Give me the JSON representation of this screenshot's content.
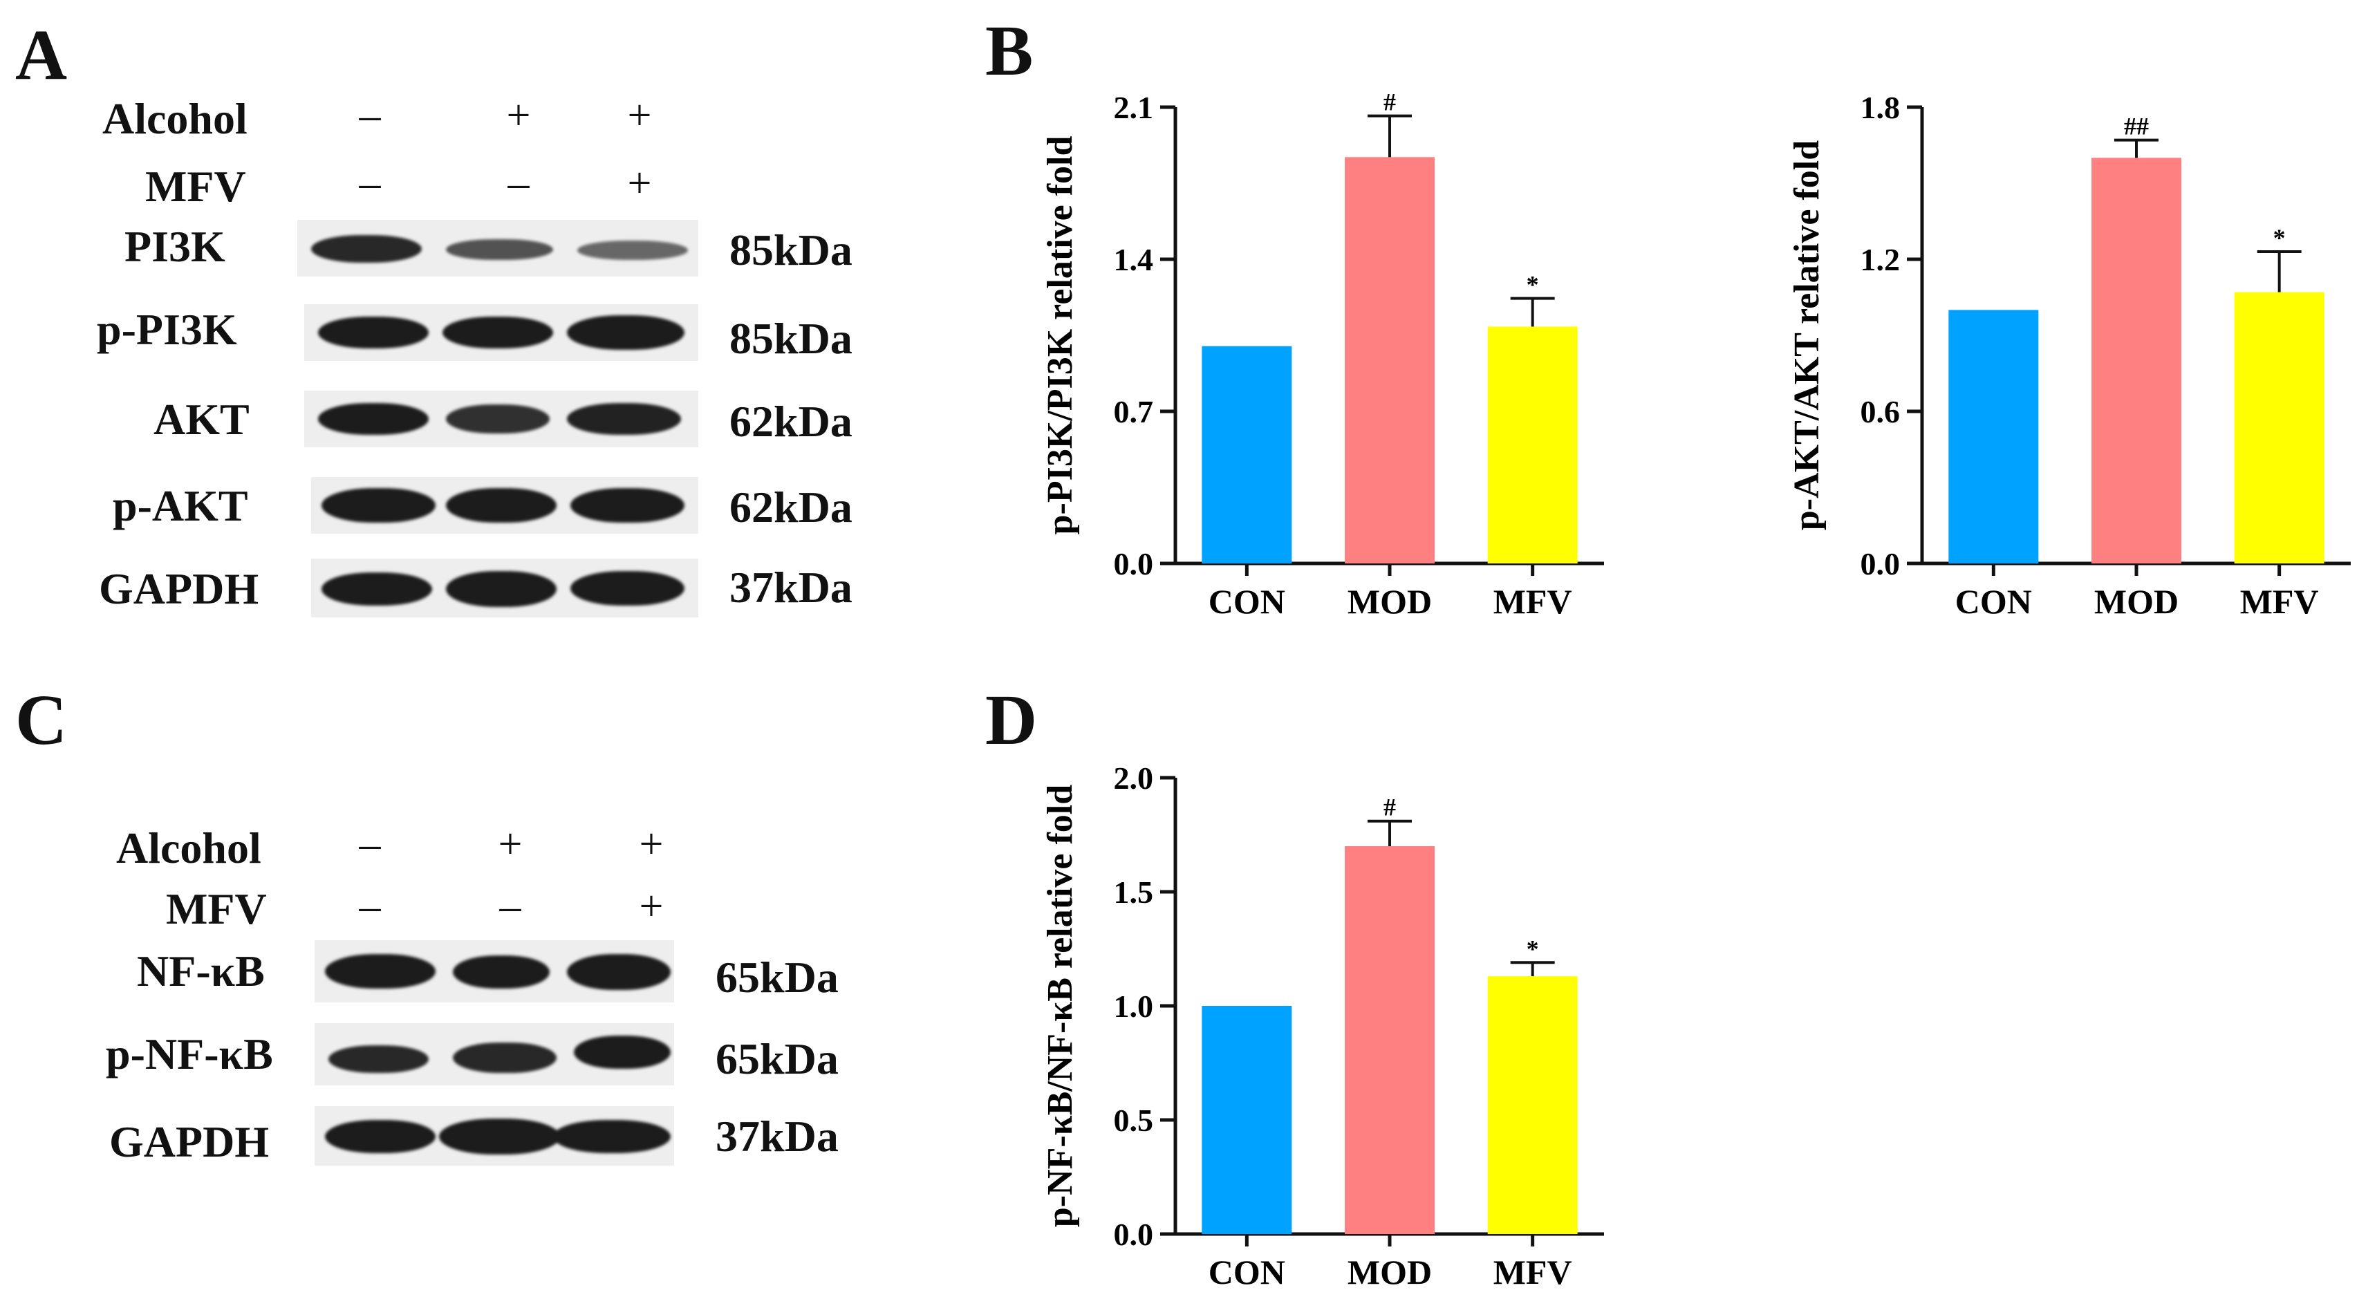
{
  "panels": {
    "A": {
      "letter": "A",
      "treatments": [
        {
          "label": "Alcohol",
          "signs": [
            "–",
            "+",
            "+"
          ]
        },
        {
          "label": "MFV",
          "signs": [
            "–",
            "–",
            "+"
          ]
        }
      ],
      "blots": [
        {
          "label": "PI3K",
          "kda": "85kDa",
          "intensity": [
            0.9,
            0.6,
            0.45
          ]
        },
        {
          "label": "p-PI3K",
          "kda": "85kDa",
          "intensity": [
            1.0,
            1.0,
            1.0
          ]
        },
        {
          "label": "AKT",
          "kda": "62kDa",
          "intensity": [
            1.0,
            0.85,
            0.95
          ]
        },
        {
          "label": "p-AKT",
          "kda": "62kDa",
          "intensity": [
            1.0,
            1.0,
            1.0
          ]
        },
        {
          "label": "GAPDH",
          "kda": "37kDa",
          "intensity": [
            1.0,
            1.0,
            1.0
          ]
        }
      ]
    },
    "B": {
      "letter": "B"
    },
    "C": {
      "letter": "C",
      "treatments": [
        {
          "label": "Alcohol",
          "signs": [
            "–",
            "+",
            "+"
          ]
        },
        {
          "label": "MFV",
          "signs": [
            "–",
            "–",
            "+"
          ]
        }
      ],
      "blots": [
        {
          "label": "NF-κB",
          "kda": "65kDa",
          "intensity": [
            1.0,
            1.0,
            1.0
          ]
        },
        {
          "label": "p-NF-κB",
          "kda": "65kDa",
          "intensity": [
            0.9,
            0.9,
            1.0
          ]
        },
        {
          "label": "GAPDH",
          "kda": "37kDa",
          "intensity": [
            1.0,
            1.0,
            1.0
          ]
        }
      ]
    },
    "D": {
      "letter": "D"
    }
  },
  "colors": {
    "CON": "#00a2ff",
    "MOD": "#ff8080",
    "MFV": "#ffff00"
  },
  "chart_data": [
    {
      "id": "pi3k",
      "type": "bar",
      "categories": [
        "CON",
        "MOD",
        "MFV"
      ],
      "values": [
        1.0,
        1.87,
        1.09
      ],
      "errors": [
        0,
        0.19,
        0.13
      ],
      "annotations": [
        "",
        "#",
        "*"
      ],
      "ylabel": "p-PI3K/PI3K relative fold",
      "ylim": [
        0,
        2.1
      ],
      "yticks": [
        "0.0",
        "0.7",
        "1.4",
        "2.1"
      ]
    },
    {
      "id": "akt",
      "type": "bar",
      "categories": [
        "CON",
        "MOD",
        "MFV"
      ],
      "values": [
        1.0,
        1.6,
        1.07
      ],
      "errors": [
        0,
        0.07,
        0.16
      ],
      "annotations": [
        "",
        "##",
        "*"
      ],
      "ylabel": "p-AKT/AKT relative fold",
      "ylim": [
        0,
        1.8
      ],
      "yticks": [
        "0.0",
        "0.6",
        "1.2",
        "1.8"
      ]
    },
    {
      "id": "nfkb",
      "type": "bar",
      "categories": [
        "CON",
        "MOD",
        "MFV"
      ],
      "values": [
        1.0,
        1.7,
        1.13
      ],
      "errors": [
        0,
        0.11,
        0.06
      ],
      "annotations": [
        "",
        "#",
        "*"
      ],
      "ylabel": "p-NF-κB/NF-κB relative fold",
      "ylim": [
        0,
        2.0
      ],
      "yticks": [
        "0.0",
        "0.5",
        "1.0",
        "1.5",
        "2.0"
      ]
    }
  ]
}
